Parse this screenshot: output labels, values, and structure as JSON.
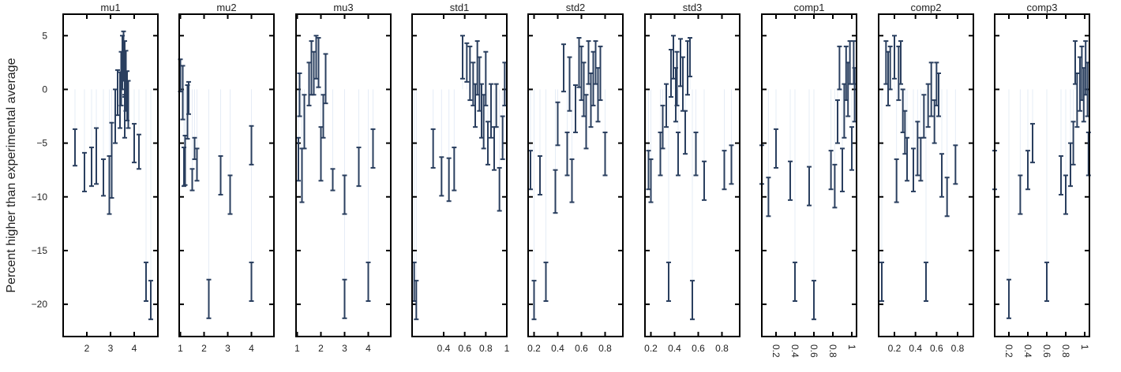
{
  "chart_data": {
    "type": "scatter",
    "ylabel": "Percent higher than experimental average",
    "ylim": [
      -23,
      7
    ],
    "yticks": [
      5,
      0,
      -5,
      -10,
      -15,
      -20
    ],
    "ytick_labels": [
      "5",
      "0",
      "−5",
      "−10",
      "−15",
      "−20"
    ],
    "colors": {
      "errorbar": "#2a3f5f",
      "grid": "#e5ecf6",
      "frame": "#000000"
    },
    "grid": true,
    "panels": [
      {
        "title": "mu1",
        "xlim": [
          1,
          5
        ],
        "xticks": [
          2,
          3,
          4
        ],
        "xtick_labels": [
          "2",
          "3",
          "4"
        ],
        "tick_rotated": false,
        "points": [
          [
            1.5,
            -5.4,
            1.7
          ],
          [
            1.9,
            -7.7,
            1.8
          ],
          [
            2.2,
            -7.2,
            1.8
          ],
          [
            2.4,
            -6.2,
            2.6
          ],
          [
            2.7,
            -8.2,
            1.7
          ],
          [
            2.95,
            -8.9,
            2.7
          ],
          [
            3.05,
            -6.6,
            3.5
          ],
          [
            3.2,
            -2.5,
            2.5
          ],
          [
            3.3,
            -0.3,
            2.1
          ],
          [
            3.4,
            -1.0,
            2.6
          ],
          [
            3.45,
            1.0,
            2.5
          ],
          [
            3.5,
            2.5,
            2.5
          ],
          [
            3.55,
            3.1,
            2.3
          ],
          [
            3.6,
            1.9,
            2.6
          ],
          [
            3.65,
            0.8,
            2.8
          ],
          [
            3.7,
            -0.6,
            2.3
          ],
          [
            3.75,
            -1.4,
            2.2
          ],
          [
            3.6,
            -2.5,
            2.0
          ],
          [
            4.0,
            -5.0,
            1.8
          ],
          [
            4.2,
            -5.8,
            1.6
          ],
          [
            4.5,
            -17.9,
            1.8
          ],
          [
            4.7,
            -19.6,
            1.8
          ]
        ]
      },
      {
        "title": "mu2",
        "xlim": [
          0.95,
          4.95
        ],
        "xticks": [
          1,
          2,
          3,
          4
        ],
        "xtick_labels": [
          "1",
          "2",
          "3",
          "4"
        ],
        "tick_rotated": false,
        "points": [
          [
            1.0,
            1.3,
            1.5
          ],
          [
            1.1,
            -0.3,
            2.5
          ],
          [
            1.15,
            -7.2,
            1.8
          ],
          [
            1.2,
            -6.6,
            2.3
          ],
          [
            1.3,
            -2.1,
            2.5
          ],
          [
            1.35,
            -0.8,
            1.5
          ],
          [
            1.5,
            -8.4,
            1.0
          ],
          [
            1.6,
            -5.5,
            1.0
          ],
          [
            1.7,
            -7.0,
            1.5
          ],
          [
            2.2,
            -19.5,
            1.8
          ],
          [
            2.7,
            -8.0,
            1.8
          ],
          [
            3.1,
            -9.8,
            1.8
          ],
          [
            4.0,
            -5.2,
            1.8
          ],
          [
            4.0,
            -17.9,
            1.8
          ]
        ]
      },
      {
        "title": "mu3",
        "xlim": [
          0.95,
          4.95
        ],
        "xticks": [
          1,
          2,
          3,
          4
        ],
        "xtick_labels": [
          "1",
          "2",
          "3",
          "4"
        ],
        "tick_rotated": false,
        "points": [
          [
            1.05,
            -6.5,
            2.0
          ],
          [
            1.1,
            -0.5,
            2.0
          ],
          [
            1.2,
            -8.0,
            2.5
          ],
          [
            1.3,
            -3.0,
            2.5
          ],
          [
            1.5,
            0.5,
            2.0
          ],
          [
            1.6,
            2.0,
            2.5
          ],
          [
            1.7,
            1.5,
            2.0
          ],
          [
            1.8,
            3.0,
            2.0
          ],
          [
            1.9,
            2.5,
            2.3
          ],
          [
            2.0,
            -6.0,
            2.5
          ],
          [
            2.1,
            -2.5,
            2.0
          ],
          [
            2.2,
            1.0,
            2.3
          ],
          [
            2.5,
            -8.4,
            1.0
          ],
          [
            3.0,
            -9.8,
            1.8
          ],
          [
            3.0,
            -19.5,
            1.8
          ],
          [
            3.6,
            -7.2,
            1.8
          ],
          [
            4.0,
            -17.9,
            1.8
          ],
          [
            4.2,
            -5.5,
            1.8
          ]
        ]
      },
      {
        "title": "std1",
        "xlim": [
          0.1,
          1.0
        ],
        "xticks": [
          0.4,
          0.6,
          0.8,
          1.0
        ],
        "xtick_labels": [
          "0.4",
          "0.6",
          "0.8",
          "1"
        ],
        "tick_rotated": false,
        "points": [
          [
            0.12,
            -17.9,
            1.8
          ],
          [
            0.14,
            -19.6,
            1.8
          ],
          [
            0.3,
            -5.5,
            1.8
          ],
          [
            0.38,
            -8.1,
            1.8
          ],
          [
            0.45,
            -8.4,
            2.0
          ],
          [
            0.5,
            -7.4,
            2.0
          ],
          [
            0.58,
            3.0,
            2.0
          ],
          [
            0.62,
            2.5,
            1.8
          ],
          [
            0.65,
            1.5,
            2.5
          ],
          [
            0.68,
            0.5,
            2.0
          ],
          [
            0.7,
            -1.5,
            2.0
          ],
          [
            0.72,
            2.0,
            2.5
          ],
          [
            0.74,
            0.5,
            2.5
          ],
          [
            0.76,
            -2.0,
            2.5
          ],
          [
            0.78,
            -3.0,
            2.5
          ],
          [
            0.8,
            1.0,
            2.5
          ],
          [
            0.82,
            -5.0,
            2.0
          ],
          [
            0.85,
            -2.0,
            2.5
          ],
          [
            0.88,
            -5.5,
            2.0
          ],
          [
            0.9,
            -1.5,
            2.0
          ],
          [
            0.93,
            -9.3,
            2.0
          ],
          [
            0.96,
            -4.5,
            2.0
          ],
          [
            0.98,
            0.5,
            2.0
          ]
        ]
      },
      {
        "title": "std2",
        "xlim": [
          0.15,
          0.95
        ],
        "xticks": [
          0.2,
          0.4,
          0.6,
          0.8
        ],
        "xtick_labels": [
          "0.2",
          "0.4",
          "0.6",
          "0.8"
        ],
        "tick_rotated": false,
        "points": [
          [
            0.17,
            -7.5,
            1.8
          ],
          [
            0.2,
            -19.6,
            1.8
          ],
          [
            0.25,
            -8.0,
            1.8
          ],
          [
            0.3,
            -17.9,
            1.8
          ],
          [
            0.38,
            -9.5,
            2.0
          ],
          [
            0.4,
            -3.2,
            2.0
          ],
          [
            0.45,
            2.0,
            2.2
          ],
          [
            0.48,
            -6.0,
            2.0
          ],
          [
            0.5,
            0.5,
            2.5
          ],
          [
            0.52,
            -8.5,
            2.0
          ],
          [
            0.55,
            -1.8,
            2.2
          ],
          [
            0.58,
            2.5,
            2.3
          ],
          [
            0.6,
            1.5,
            2.5
          ],
          [
            0.62,
            0.0,
            2.5
          ],
          [
            0.64,
            -3.0,
            2.5
          ],
          [
            0.66,
            2.5,
            2.0
          ],
          [
            0.68,
            -1.0,
            2.5
          ],
          [
            0.7,
            1.0,
            2.5
          ],
          [
            0.72,
            2.5,
            2.0
          ],
          [
            0.74,
            -0.5,
            2.5
          ],
          [
            0.76,
            1.5,
            2.5
          ],
          [
            0.8,
            -6.0,
            2.0
          ]
        ]
      },
      {
        "title": "std3",
        "xlim": [
          0.15,
          0.95
        ],
        "xticks": [
          0.2,
          0.4,
          0.6,
          0.8
        ],
        "xtick_labels": [
          "0.2",
          "0.4",
          "0.6",
          "0.8"
        ],
        "tick_rotated": false,
        "points": [
          [
            0.18,
            -7.5,
            1.8
          ],
          [
            0.2,
            -8.5,
            2.0
          ],
          [
            0.28,
            -6.0,
            2.0
          ],
          [
            0.3,
            -3.5,
            2.0
          ],
          [
            0.33,
            -1.5,
            2.0
          ],
          [
            0.35,
            -17.9,
            1.8
          ],
          [
            0.37,
            1.5,
            2.2
          ],
          [
            0.39,
            3.0,
            2.0
          ],
          [
            0.41,
            -0.5,
            2.5
          ],
          [
            0.42,
            1.0,
            2.5
          ],
          [
            0.43,
            -6.0,
            2.0
          ],
          [
            0.45,
            2.5,
            2.2
          ],
          [
            0.47,
            0.5,
            2.5
          ],
          [
            0.49,
            -4.0,
            2.0
          ],
          [
            0.51,
            2.0,
            2.5
          ],
          [
            0.53,
            3.0,
            1.8
          ],
          [
            0.55,
            -19.6,
            1.8
          ],
          [
            0.58,
            -6.0,
            2.0
          ],
          [
            0.65,
            -8.5,
            1.8
          ],
          [
            0.82,
            -7.5,
            1.8
          ],
          [
            0.88,
            -7.0,
            1.8
          ]
        ]
      },
      {
        "title": "comp1",
        "xlim": [
          0.05,
          1.05
        ],
        "xticks": [
          0.2,
          0.4,
          0.6,
          0.8,
          1.0
        ],
        "xtick_labels": [
          "0.2",
          "0.4",
          "0.6",
          "0.8",
          "1"
        ],
        "tick_rotated": true,
        "points": [
          [
            0.05,
            -7.0,
            1.8
          ],
          [
            0.12,
            -10.0,
            1.8
          ],
          [
            0.2,
            -5.5,
            1.8
          ],
          [
            0.35,
            -8.5,
            1.8
          ],
          [
            0.4,
            -17.9,
            1.8
          ],
          [
            0.55,
            -9.0,
            1.8
          ],
          [
            0.6,
            -19.6,
            1.8
          ],
          [
            0.78,
            -7.5,
            1.8
          ],
          [
            0.82,
            -9.0,
            2.0
          ],
          [
            0.85,
            -3.0,
            2.0
          ],
          [
            0.87,
            2.0,
            2.0
          ],
          [
            0.9,
            -7.5,
            2.0
          ],
          [
            0.92,
            -2.0,
            2.5
          ],
          [
            0.94,
            1.5,
            2.5
          ],
          [
            0.96,
            0.0,
            2.5
          ],
          [
            0.98,
            2.5,
            2.0
          ],
          [
            1.0,
            -5.5,
            2.0
          ],
          [
            1.02,
            2.5,
            2.0
          ],
          [
            1.03,
            -0.5,
            2.5
          ]
        ]
      },
      {
        "title": "comp2",
        "xlim": [
          0.05,
          0.95
        ],
        "xticks": [
          0.2,
          0.4,
          0.6,
          0.8
        ],
        "xtick_labels": [
          "0.2",
          "0.4",
          "0.6",
          "0.8"
        ],
        "tick_rotated": false,
        "points": [
          [
            0.08,
            -17.9,
            1.8
          ],
          [
            0.12,
            2.5,
            2.0
          ],
          [
            0.14,
            1.0,
            2.5
          ],
          [
            0.16,
            2.0,
            2.0
          ],
          [
            0.2,
            3.0,
            2.0
          ],
          [
            0.22,
            -8.5,
            2.0
          ],
          [
            0.24,
            1.5,
            2.5
          ],
          [
            0.26,
            2.5,
            2.0
          ],
          [
            0.28,
            -2.0,
            2.0
          ],
          [
            0.3,
            -4.0,
            2.0
          ],
          [
            0.32,
            -6.5,
            2.0
          ],
          [
            0.38,
            -7.5,
            2.0
          ],
          [
            0.42,
            -5.5,
            2.5
          ],
          [
            0.45,
            -6.5,
            2.0
          ],
          [
            0.48,
            -2.5,
            2.0
          ],
          [
            0.5,
            -17.9,
            1.8
          ],
          [
            0.52,
            -1.5,
            2.0
          ],
          [
            0.55,
            0.0,
            2.5
          ],
          [
            0.58,
            -3.0,
            2.0
          ],
          [
            0.6,
            0.5,
            2.0
          ],
          [
            0.62,
            -0.5,
            2.0
          ],
          [
            0.65,
            -8.0,
            2.0
          ],
          [
            0.7,
            -10.0,
            1.8
          ],
          [
            0.78,
            -7.0,
            1.8
          ]
        ]
      },
      {
        "title": "comp3",
        "xlim": [
          0.05,
          1.05
        ],
        "xticks": [
          0.2,
          0.4,
          0.6,
          0.8,
          1.0
        ],
        "xtick_labels": [
          "0.2",
          "0.4",
          "0.6",
          "0.8",
          "1"
        ],
        "tick_rotated": true,
        "points": [
          [
            0.05,
            -7.5,
            1.8
          ],
          [
            0.2,
            -19.5,
            1.8
          ],
          [
            0.32,
            -9.8,
            1.8
          ],
          [
            0.4,
            -7.5,
            1.8
          ],
          [
            0.45,
            -5.0,
            1.8
          ],
          [
            0.6,
            -17.9,
            1.8
          ],
          [
            0.75,
            -8.0,
            1.8
          ],
          [
            0.8,
            -9.8,
            1.8
          ],
          [
            0.85,
            -7.0,
            2.0
          ],
          [
            0.88,
            -5.0,
            2.0
          ],
          [
            0.9,
            2.5,
            2.0
          ],
          [
            0.92,
            -1.0,
            2.5
          ],
          [
            0.95,
            0.5,
            2.5
          ],
          [
            0.97,
            1.5,
            2.5
          ],
          [
            0.99,
            -0.5,
            2.5
          ],
          [
            1.01,
            2.0,
            2.5
          ],
          [
            1.03,
            0.0,
            2.5
          ],
          [
            1.04,
            -6.0,
            2.0
          ]
        ]
      }
    ]
  }
}
